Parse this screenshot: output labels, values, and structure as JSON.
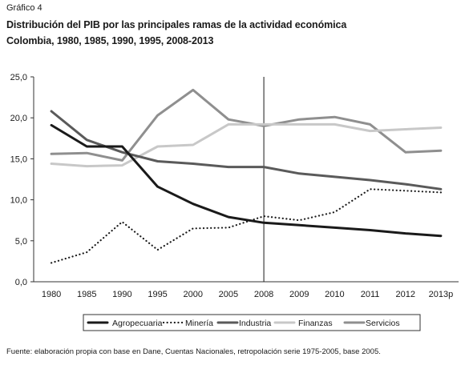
{
  "kicker": "Gráfico 4",
  "title_line1": "Distribución del PIB por las principales ramas de la actividad económica",
  "title_line2": "Colombia, 1980, 1985, 1990, 1995, 2008-2013",
  "source": "Fuente: elaboración propia con base en Dane, Cuentas Nacionales, retropolación serie 1975-2005, base 2005.",
  "chart_data": {
    "type": "line",
    "x": [
      "1980",
      "1985",
      "1990",
      "1995",
      "2000",
      "2005",
      "2008",
      "2009",
      "2010",
      "2011",
      "2012",
      "2013p"
    ],
    "ylim": [
      0,
      25
    ],
    "yticks": [
      "0,0",
      "5,0",
      "10,0",
      "15,0",
      "20,0",
      "25,0"
    ],
    "yticks_values": [
      0,
      5,
      10,
      15,
      20,
      25
    ],
    "reference_line_at": "2008",
    "legend_position": "bottom",
    "grid": false,
    "series": [
      {
        "name": "Agropecuaria",
        "color": "#1a1a1a",
        "dash": "solid",
        "values": [
          19.1,
          16.5,
          16.5,
          11.6,
          9.5,
          7.9,
          7.2,
          6.9,
          6.6,
          6.3,
          5.9,
          5.6
        ]
      },
      {
        "name": "Minería",
        "color": "#1a1a1a",
        "dash": "dotted",
        "values": [
          2.3,
          3.6,
          7.3,
          3.9,
          6.5,
          6.6,
          8.0,
          7.5,
          8.5,
          11.3,
          11.1,
          10.9
        ]
      },
      {
        "name": "Industria",
        "color": "#5a5a5a",
        "dash": "solid",
        "values": [
          20.8,
          17.3,
          15.8,
          14.7,
          14.4,
          14.0,
          14.0,
          13.2,
          12.8,
          12.4,
          11.9,
          11.3
        ]
      },
      {
        "name": "Finanzas",
        "color": "#c8c8c8",
        "dash": "solid",
        "values": [
          14.4,
          14.1,
          14.2,
          16.5,
          16.7,
          19.2,
          19.2,
          19.2,
          19.2,
          18.4,
          18.6,
          18.8
        ]
      },
      {
        "name": "Servicios",
        "color": "#8f8f8f",
        "dash": "solid",
        "values": [
          15.6,
          15.7,
          14.8,
          20.3,
          23.4,
          19.8,
          19.0,
          19.8,
          20.1,
          19.2,
          15.8,
          16.0
        ]
      }
    ]
  }
}
